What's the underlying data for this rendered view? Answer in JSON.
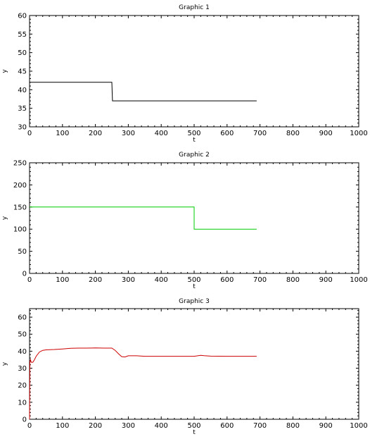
{
  "chart_data": [
    {
      "type": "line",
      "title": "Graphic 1",
      "xlabel": "t",
      "ylabel": "y",
      "xlim": [
        0,
        1000
      ],
      "ylim": [
        30,
        60
      ],
      "xticks": [
        0,
        100,
        200,
        300,
        400,
        500,
        600,
        700,
        800,
        900,
        1000
      ],
      "yticks": [
        30,
        35,
        40,
        45,
        50,
        55,
        60
      ],
      "grid": false,
      "series": [
        {
          "color": "#000000",
          "x": [
            0,
            250,
            252,
            690
          ],
          "y": [
            42,
            42,
            37,
            37
          ]
        }
      ]
    },
    {
      "type": "line",
      "title": "Graphic 2",
      "xlabel": "t",
      "ylabel": "y",
      "xlim": [
        0,
        1000
      ],
      "ylim": [
        0,
        250
      ],
      "xticks": [
        0,
        100,
        200,
        300,
        400,
        500,
        600,
        700,
        800,
        900,
        1000
      ],
      "yticks": [
        0,
        50,
        100,
        150,
        200,
        250
      ],
      "grid": false,
      "series": [
        {
          "color": "#00cc00",
          "x": [
            0,
            500,
            500,
            690
          ],
          "y": [
            150,
            150,
            100,
            100
          ]
        }
      ]
    },
    {
      "type": "line",
      "title": "Graphic 3",
      "xlabel": "t",
      "ylabel": "y",
      "xlim": [
        0,
        1000
      ],
      "ylim": [
        0,
        65
      ],
      "xticks": [
        0,
        100,
        200,
        300,
        400,
        500,
        600,
        700,
        800,
        900,
        1000
      ],
      "yticks": [
        0,
        10,
        20,
        30,
        40,
        50,
        60
      ],
      "grid": false,
      "series": [
        {
          "color": "#cc0000",
          "x": [
            0,
            1,
            3,
            5,
            10,
            15,
            20,
            30,
            40,
            50,
            75,
            100,
            125,
            150,
            175,
            200,
            225,
            250,
            260,
            270,
            280,
            290,
            300,
            325,
            350,
            400,
            450,
            500,
            520,
            530,
            550,
            600,
            650,
            690
          ],
          "y": [
            0,
            34,
            35,
            33.5,
            33.5,
            35,
            37,
            39.5,
            40.5,
            40.8,
            41,
            41.3,
            41.7,
            41.8,
            41.8,
            41.9,
            41.8,
            41.8,
            40.5,
            38.5,
            36.8,
            36.6,
            37.3,
            37.3,
            37,
            37,
            37,
            37,
            37.6,
            37.4,
            37.1,
            37,
            37,
            37
          ]
        }
      ]
    }
  ]
}
